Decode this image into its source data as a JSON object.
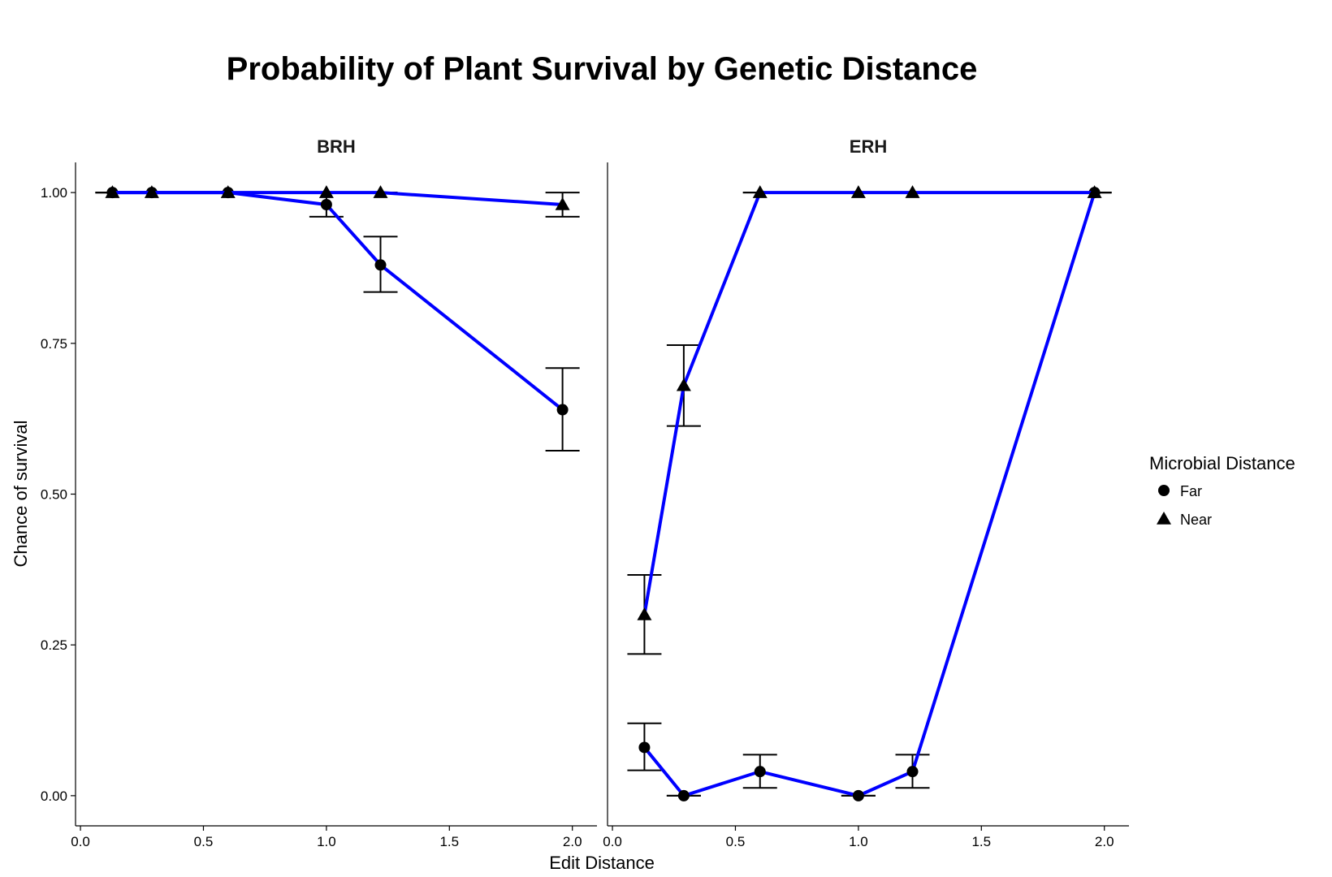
{
  "chart_data": {
    "type": "line",
    "title": "Probability of Plant Survival by Genetic Distance",
    "xlabel": "Edit Distance",
    "ylabel": "Chance of survival",
    "xlim": [
      -0.02,
      2.1
    ],
    "ylim": [
      -0.05,
      1.05
    ],
    "xticks": [
      0.0,
      0.5,
      1.0,
      1.5,
      2.0
    ],
    "xtick_labels": [
      "0.0",
      "0.5",
      "1.0",
      "1.5",
      "2.0"
    ],
    "yticks": [
      0.0,
      0.25,
      0.5,
      0.75,
      1.0
    ],
    "ytick_labels": [
      "0.00",
      "0.25",
      "0.50",
      "0.75",
      "1.00"
    ],
    "line_color": "#0000ff",
    "legend": {
      "title": "Microbial Distance",
      "entries": [
        {
          "label": "Far",
          "shape": "circle"
        },
        {
          "label": "Near",
          "shape": "triangle"
        }
      ],
      "position": "right"
    },
    "panels": [
      {
        "name": "BRH",
        "series": [
          {
            "name": "Far",
            "shape": "circle",
            "x": [
              0.13,
              0.29,
              0.6,
              1.0,
              1.22,
              1.96
            ],
            "y": [
              1.0,
              1.0,
              1.0,
              0.98,
              0.88,
              0.64
            ],
            "err_low": [
              1.0,
              1.0,
              1.0,
              0.96,
              0.835,
              0.572
            ],
            "err_high": [
              1.0,
              1.0,
              1.0,
              1.0,
              0.927,
              0.709
            ]
          },
          {
            "name": "Near",
            "shape": "triangle",
            "x": [
              0.13,
              0.29,
              0.6,
              1.0,
              1.22,
              1.96
            ],
            "y": [
              1.0,
              1.0,
              1.0,
              1.0,
              1.0,
              0.98
            ],
            "err_low": [
              1.0,
              1.0,
              1.0,
              1.0,
              1.0,
              0.96
            ],
            "err_high": [
              1.0,
              1.0,
              1.0,
              1.0,
              1.0,
              1.0
            ]
          }
        ]
      },
      {
        "name": "ERH",
        "series": [
          {
            "name": "Far",
            "shape": "circle",
            "x": [
              0.13,
              0.29,
              0.6,
              1.0,
              1.22,
              1.96
            ],
            "y": [
              0.08,
              0.0,
              0.04,
              0.0,
              0.04,
              1.0
            ],
            "err_low": [
              0.042,
              0.0,
              0.013,
              0.0,
              0.013,
              1.0
            ],
            "err_high": [
              0.12,
              0.0,
              0.068,
              0.0,
              0.068,
              1.0
            ]
          },
          {
            "name": "Near",
            "shape": "triangle",
            "x": [
              0.13,
              0.29,
              0.6,
              1.0,
              1.22,
              1.96
            ],
            "y": [
              0.3,
              0.68,
              1.0,
              1.0,
              1.0,
              1.0
            ],
            "err_low": [
              0.235,
              0.613,
              1.0,
              1.0,
              1.0,
              1.0
            ],
            "err_high": [
              0.366,
              0.747,
              1.0,
              1.0,
              1.0,
              1.0
            ]
          }
        ]
      }
    ]
  }
}
